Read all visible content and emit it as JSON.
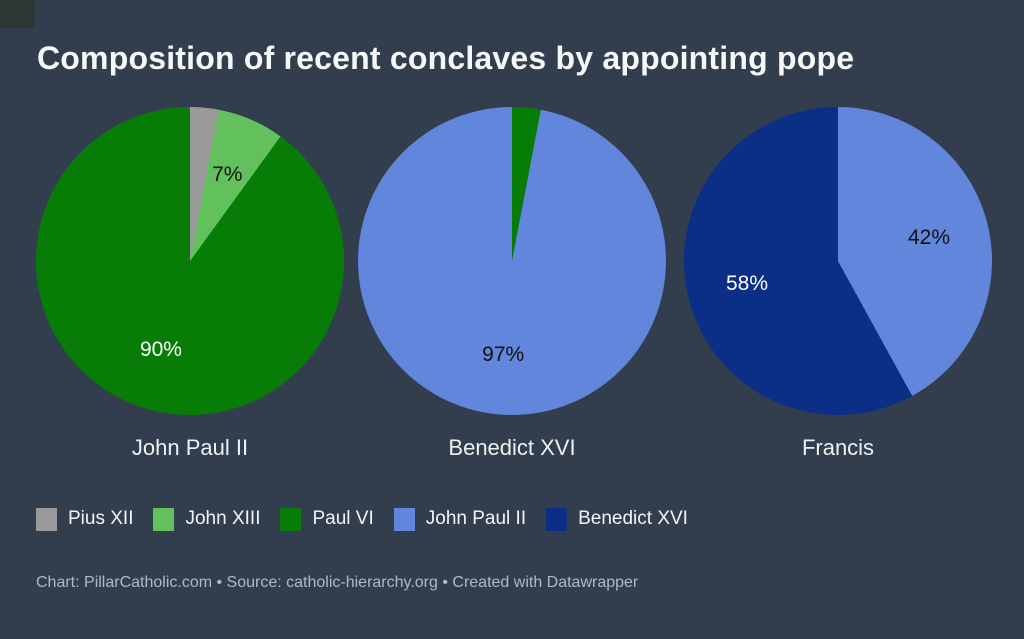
{
  "title": "Composition of recent conclaves by appointing pope",
  "colors": {
    "background": "#323e4d",
    "pius_xii_gray": "#9a9a9a",
    "john_xiii_light_green": "#63c15d",
    "paul_vi_dark_green": "#077d07",
    "john_paul_ii_light_blue": "#6186dc",
    "benedict_xvi_dark_blue": "#0b2f86"
  },
  "chart_data": [
    {
      "type": "pie",
      "title": "John Paul II",
      "start_angle_deg": 0,
      "direction": "clockwise",
      "slices": [
        {
          "label": "Pius XII",
          "value": 3,
          "color": "#9a9a9a",
          "show_label": false,
          "label_color": "#111111"
        },
        {
          "label": "John XIII",
          "value": 7,
          "color": "#63c15d",
          "show_label": true,
          "label_color": "#111111"
        },
        {
          "label": "Paul VI",
          "value": 90,
          "color": "#077d07",
          "show_label": true,
          "label_color": "#ffffff"
        }
      ]
    },
    {
      "type": "pie",
      "title": "Benedict XVI",
      "start_angle_deg": 0,
      "direction": "clockwise",
      "slices": [
        {
          "label": "Paul VI",
          "value": 3,
          "color": "#077d07",
          "show_label": false,
          "label_color": "#111111"
        },
        {
          "label": "John Paul II",
          "value": 97,
          "color": "#6186dc",
          "show_label": true,
          "label_color": "#111111"
        }
      ]
    },
    {
      "type": "pie",
      "title": "Francis",
      "start_angle_deg": 0,
      "direction": "clockwise",
      "slices": [
        {
          "label": "John Paul II",
          "value": 42,
          "color": "#6186dc",
          "show_label": true,
          "label_color": "#111111"
        },
        {
          "label": "Benedict XVI",
          "value": 58,
          "color": "#0b2f86",
          "show_label": true,
          "label_color": "#ffffff"
        }
      ]
    }
  ],
  "legend": {
    "position": "bottom-left",
    "items": [
      {
        "label": "Pius XII",
        "color": "#9a9a9a"
      },
      {
        "label": "John XIII",
        "color": "#63c15d"
      },
      {
        "label": "Paul VI",
        "color": "#077d07"
      },
      {
        "label": "John Paul II",
        "color": "#6186dc"
      },
      {
        "label": "Benedict XVI",
        "color": "#0b2f86"
      }
    ]
  },
  "footer": "Chart: PillarCatholic.com • Source: catholic-hierarchy.org • Created with Datawrapper"
}
